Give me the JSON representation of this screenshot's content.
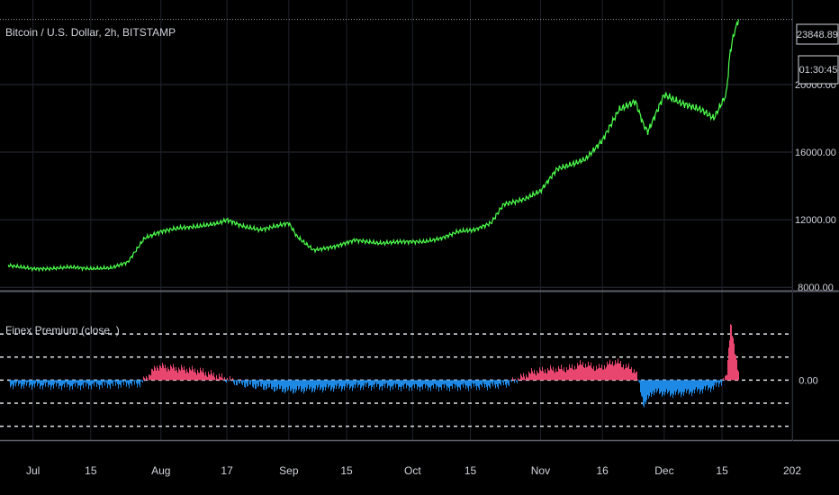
{
  "chart_data": [
    {
      "type": "line",
      "title": "Bitcoin / U.S. Dollar, 2h, BITSTAMP",
      "xlabel": "",
      "ylabel": "",
      "x_ticks": [
        "Jul",
        "15",
        "Aug",
        "17",
        "Sep",
        "15",
        "Oct",
        "15",
        "Nov",
        "16",
        "Dec",
        "15",
        "202"
      ],
      "y_ticks": [
        "8000.00",
        "12000.00",
        "16000.00",
        "20000.00"
      ],
      "ylim": [
        7800,
        25000
      ],
      "last_price": "23848.89",
      "countdown": "01:30:45",
      "series": [
        {
          "color": "#4cff4c",
          "x": [
            "2020-06-25",
            "2020-07-01",
            "2020-07-05",
            "2020-07-10",
            "2020-07-15",
            "2020-07-20",
            "2020-07-24",
            "2020-07-28",
            "2020-08-01",
            "2020-08-05",
            "2020-08-10",
            "2020-08-15",
            "2020-08-17",
            "2020-08-21",
            "2020-08-25",
            "2020-09-01",
            "2020-09-03",
            "2020-09-07",
            "2020-09-12",
            "2020-09-17",
            "2020-09-23",
            "2020-09-28",
            "2020-10-04",
            "2020-10-08",
            "2020-10-12",
            "2020-10-16",
            "2020-10-20",
            "2020-10-23",
            "2020-10-28",
            "2020-11-01",
            "2020-11-05",
            "2020-11-09",
            "2020-11-12",
            "2020-11-16",
            "2020-11-20",
            "2020-11-24",
            "2020-11-26",
            "2020-11-27",
            "2020-12-01",
            "2020-12-05",
            "2020-12-10",
            "2020-12-13",
            "2020-12-16",
            "2020-12-17",
            "2020-12-18",
            "2020-12-19"
          ],
          "y": [
            9300,
            9100,
            9100,
            9200,
            9100,
            9150,
            9500,
            10900,
            11300,
            11500,
            11600,
            11800,
            12000,
            11600,
            11400,
            11800,
            11000,
            10200,
            10400,
            10800,
            10600,
            10700,
            10700,
            10900,
            11300,
            11400,
            11800,
            12900,
            13200,
            13700,
            15000,
            15300,
            15600,
            16700,
            18500,
            19000,
            17600,
            17200,
            19400,
            18900,
            18500,
            18000,
            19400,
            22000,
            23100,
            23848
          ]
        }
      ]
    },
    {
      "type": "area",
      "title": "Finex Premium (close, )",
      "y_ticks": [
        "0.00"
      ],
      "ylim": [
        -2.6,
        3.8
      ],
      "reference_lines": [
        -2,
        -1,
        0,
        1,
        2
      ],
      "colors": {
        "positive": "#e8456f",
        "negative": "#1e88e5"
      },
      "series": [
        {
          "x": [
            "2020-06-25",
            "2020-07-10",
            "2020-07-27",
            "2020-07-31",
            "2020-08-05",
            "2020-08-10",
            "2020-08-14",
            "2020-08-20",
            "2020-09-01",
            "2020-09-10",
            "2020-09-20",
            "2020-10-01",
            "2020-10-10",
            "2020-10-20",
            "2020-10-24",
            "2020-10-30",
            "2020-11-03",
            "2020-11-08",
            "2020-11-11",
            "2020-11-15",
            "2020-11-19",
            "2020-11-22",
            "2020-11-24",
            "2020-11-26",
            "2020-11-28",
            "2020-12-03",
            "2020-12-08",
            "2020-12-13",
            "2020-12-16",
            "2020-12-17",
            "2020-12-18",
            "2020-12-19"
          ],
          "y": [
            -0.2,
            -0.25,
            -0.15,
            0.6,
            0.5,
            0.4,
            0.2,
            -0.15,
            -0.45,
            -0.35,
            -0.25,
            -0.3,
            -0.3,
            -0.25,
            -0.15,
            0.35,
            0.45,
            0.5,
            0.7,
            0.5,
            0.8,
            0.55,
            0.4,
            -1.1,
            -0.5,
            -0.6,
            -0.5,
            -0.3,
            0.1,
            2.6,
            1.2,
            0.3
          ]
        }
      ]
    }
  ]
}
